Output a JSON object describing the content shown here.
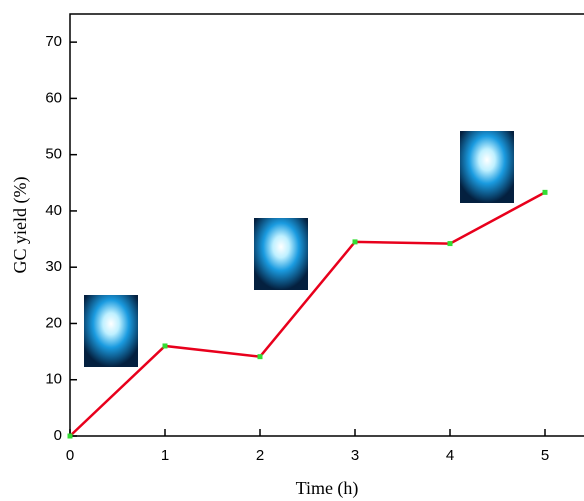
{
  "chart_data": {
    "type": "line",
    "x": [
      0,
      1,
      2,
      3,
      4,
      5
    ],
    "values": [
      0,
      16,
      14.1,
      34.5,
      34.2,
      43.3
    ],
    "color": "#e8001c",
    "marker_color": "#33dd33",
    "xlim": [
      0,
      5.4
    ],
    "xticks": [
      0,
      1,
      2,
      3,
      4,
      5
    ],
    "ylim": [
      0,
      75
    ],
    "yticks": [
      0,
      10,
      20,
      30,
      40,
      50,
      60,
      70
    ],
    "x_label": "Time (h)",
    "y_label": "GC yield (%)"
  }
}
